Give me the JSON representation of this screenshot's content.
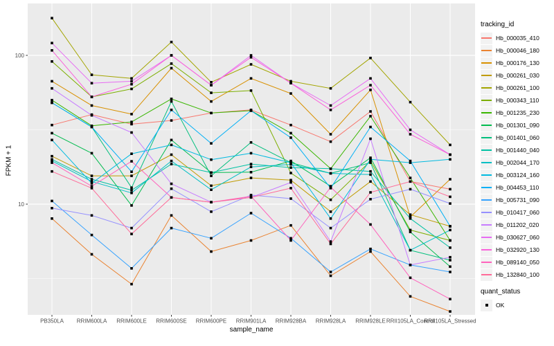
{
  "chart_data": {
    "type": "line",
    "xlabel": "sample_name",
    "ylabel": "FPKM + 1",
    "y_scale": "log10",
    "y_ticks": [
      {
        "label": "100",
        "value": 100
      },
      {
        "label": "10",
        "value": 10
      }
    ],
    "y_minor_gridlines": [
      3.1623,
      31.6228
    ],
    "ylim": [
      1.8,
      210
    ],
    "grid": true,
    "panel_bg": "#EBEBEB",
    "grid_color": "#FFFFFF",
    "axis_text_color": "#4D4D4D",
    "marker": "square",
    "marker_color": "#000000",
    "legend_title": "tracking_id",
    "legend_position": "right",
    "quant_status": {
      "title": "quant_status",
      "items": [
        {
          "label": "OK",
          "marker": "square",
          "color": "#000000"
        }
      ]
    },
    "categories": [
      "PB350LA",
      "RRIM600LA",
      "RRIM600LE",
      "RRIM600SE",
      "RRIM600PE",
      "RRIM901LA",
      "RRIM928BA",
      "RRIM928LA",
      "RRIM928LE",
      "RRII105LA_Control",
      "RRII105LA_Stressed"
    ],
    "series": [
      {
        "name": "Hb_000035_410",
        "color": "#F8766D",
        "values": [
          34,
          40,
          34.5,
          36.5,
          41,
          43,
          34,
          26.3,
          42,
          14.2,
          12.6
        ]
      },
      {
        "name": "Hb_000046_180",
        "color": "#EA8331",
        "values": [
          8,
          4.6,
          2.9,
          8.4,
          4.8,
          5.7,
          7.2,
          3.3,
          4.8,
          2.4,
          1.9
        ]
      },
      {
        "name": "Hb_000176_130",
        "color": "#D89000",
        "values": [
          67,
          46,
          40.3,
          82,
          49,
          70,
          55.4,
          29.5,
          58.6,
          8.2,
          14.7
        ]
      },
      {
        "name": "Hb_000261_030",
        "color": "#C09B00",
        "values": [
          21,
          15.5,
          15.5,
          21.5,
          13.3,
          15,
          14.5,
          8.9,
          14.2,
          8.5,
          7.1
        ]
      },
      {
        "name": "Hb_000261_100",
        "color": "#A3A500",
        "values": [
          178,
          74,
          70,
          123,
          66,
          87,
          67,
          60,
          96,
          48.5,
          25
        ]
      },
      {
        "name": "Hb_000343_110",
        "color": "#7CAE00",
        "values": [
          91,
          52.6,
          59.5,
          88,
          56,
          58,
          16.2,
          10.7,
          19.5,
          6.7,
          5.7
        ]
      },
      {
        "name": "Hb_001235_230",
        "color": "#39B600",
        "values": [
          50,
          33.6,
          35.7,
          51,
          41,
          42.5,
          30,
          17.3,
          39,
          15,
          5.7
        ]
      },
      {
        "name": "Hb_001301_090",
        "color": "#00BB4E",
        "values": [
          30,
          22,
          9.8,
          27,
          16.3,
          16.4,
          19.5,
          13.2,
          20.5,
          6.5,
          3.8
        ]
      },
      {
        "name": "Hb_001401_060",
        "color": "#00BF7D",
        "values": [
          48,
          33,
          12.9,
          49,
          15.5,
          26,
          19,
          16.1,
          19,
          4.9,
          4.2
        ]
      },
      {
        "name": "Hb_001440_040",
        "color": "#00C1A3",
        "values": [
          20,
          14.7,
          12.4,
          18.6,
          16.3,
          18.6,
          17.6,
          17.3,
          16.6,
          8,
          5.1
        ]
      },
      {
        "name": "Hb_002044_170",
        "color": "#00BFC4",
        "values": [
          19.5,
          14.2,
          11.9,
          19.5,
          12.5,
          17.8,
          18.5,
          16.1,
          15.8,
          4.9,
          6.7
        ]
      },
      {
        "name": "Hb_003124_160",
        "color": "#00BAE0",
        "values": [
          27,
          13.8,
          21.8,
          25,
          19.9,
          22,
          19,
          8,
          20,
          19,
          20
        ]
      },
      {
        "name": "Hb_004453_110",
        "color": "#00B0F6",
        "values": [
          48,
          33,
          16.5,
          43,
          25.6,
          42.5,
          28,
          12.8,
          33,
          19.5,
          7.1
        ]
      },
      {
        "name": "Hb_005731_090",
        "color": "#35A2FF",
        "values": [
          10.5,
          6.2,
          3.7,
          6.9,
          5.9,
          8.7,
          5.9,
          3.5,
          5,
          3.9,
          3.5
        ]
      },
      {
        "name": "Hb_010417_060",
        "color": "#9590FF",
        "values": [
          9.4,
          8.4,
          6.9,
          12.7,
          8.9,
          11.5,
          10.9,
          6.9,
          10.8,
          12.6,
          10.1
        ]
      },
      {
        "name": "Hb_011202_020",
        "color": "#C77CFF",
        "values": [
          60,
          39.5,
          30.3,
          13.7,
          10.3,
          11.1,
          14,
          5.6,
          27.5,
          3.9,
          4.4
        ]
      },
      {
        "name": "Hb_030627_060",
        "color": "#E76BF3",
        "values": [
          121,
          65,
          67,
          100,
          63,
          100,
          65,
          46,
          70,
          31.6,
          21.5
        ]
      },
      {
        "name": "Hb_032920_130",
        "color": "#FA62DB",
        "values": [
          108,
          52.6,
          64,
          100,
          63,
          97,
          65,
          43,
          63,
          29.5,
          21.5
        ]
      },
      {
        "name": "Hb_089140_050",
        "color": "#FF62BC",
        "values": [
          19,
          13.2,
          19.4,
          11.1,
          10.3,
          11.3,
          5.7,
          13,
          7.3,
          3.2,
          2.3
        ]
      },
      {
        "name": "Hb_132840_100",
        "color": "#FF6A98",
        "values": [
          16.6,
          12.8,
          6.3,
          11.1,
          10.3,
          11.1,
          12.8,
          5.4,
          12,
          14.2,
          11.2
        ]
      }
    ]
  }
}
